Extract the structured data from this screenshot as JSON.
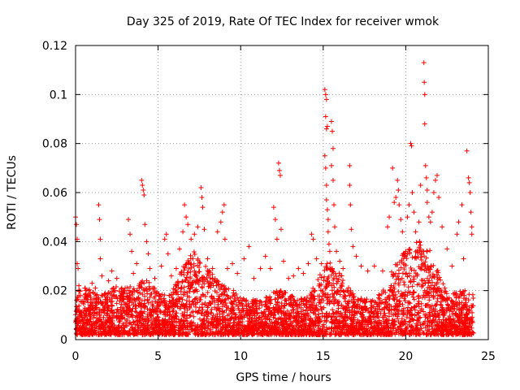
{
  "chart_data": {
    "type": "scatter",
    "title": "Day 325 of 2019, Rate Of TEC Index for receiver wmok",
    "xlabel": "GPS time / hours",
    "ylabel": "ROTI / TECUs",
    "xlim": [
      0,
      25
    ],
    "ylim": [
      0,
      0.12
    ],
    "x_ticks": [
      0,
      5,
      10,
      15,
      20,
      25
    ],
    "x_tick_labels": [
      "0",
      "5",
      "10",
      "15",
      "20",
      "25"
    ],
    "y_ticks": [
      0,
      0.02,
      0.04,
      0.06,
      0.08,
      0.1,
      0.12
    ],
    "y_tick_labels": [
      "0",
      "0.02",
      "0.04",
      "0.06",
      "0.08",
      "0.1",
      "0.12"
    ],
    "grid": true,
    "marker": "+",
    "series": [
      {
        "color": "#ff0000",
        "points": [
          [
            0.0,
            0.05
          ],
          [
            0.05,
            0.047
          ],
          [
            0.1,
            0.041
          ],
          [
            0.1,
            0.031
          ],
          [
            0.15,
            0.029
          ],
          [
            0.2,
            0.022
          ],
          [
            0.3,
            0.018
          ],
          [
            0.5,
            0.012
          ],
          [
            0.8,
            0.02
          ],
          [
            1.0,
            0.023
          ],
          [
            1.2,
            0.021
          ],
          [
            1.4,
            0.055
          ],
          [
            1.45,
            0.049
          ],
          [
            1.5,
            0.041
          ],
          [
            1.5,
            0.033
          ],
          [
            1.6,
            0.026
          ],
          [
            2.0,
            0.024
          ],
          [
            2.2,
            0.028
          ],
          [
            2.5,
            0.025
          ],
          [
            2.8,
            0.021
          ],
          [
            3.2,
            0.049
          ],
          [
            3.3,
            0.043
          ],
          [
            3.4,
            0.036
          ],
          [
            3.5,
            0.027
          ],
          [
            3.7,
            0.031
          ],
          [
            4.0,
            0.065
          ],
          [
            4.05,
            0.063
          ],
          [
            4.1,
            0.061
          ],
          [
            4.15,
            0.059
          ],
          [
            4.2,
            0.047
          ],
          [
            4.3,
            0.04
          ],
          [
            4.4,
            0.035
          ],
          [
            4.5,
            0.029
          ],
          [
            4.8,
            0.025
          ],
          [
            5.2,
            0.03
          ],
          [
            5.4,
            0.041
          ],
          [
            5.5,
            0.043
          ],
          [
            5.6,
            0.035
          ],
          [
            5.8,
            0.026
          ],
          [
            6.1,
            0.029
          ],
          [
            6.3,
            0.037
          ],
          [
            6.5,
            0.044
          ],
          [
            6.6,
            0.055
          ],
          [
            6.7,
            0.05
          ],
          [
            6.8,
            0.047
          ],
          [
            7.0,
            0.041
          ],
          [
            7.2,
            0.043
          ],
          [
            7.4,
            0.046
          ],
          [
            7.6,
            0.062
          ],
          [
            7.65,
            0.058
          ],
          [
            7.7,
            0.054
          ],
          [
            7.8,
            0.045
          ],
          [
            8.0,
            0.033
          ],
          [
            8.3,
            0.029
          ],
          [
            8.6,
            0.044
          ],
          [
            8.8,
            0.048
          ],
          [
            8.9,
            0.052
          ],
          [
            9.0,
            0.055
          ],
          [
            9.05,
            0.041
          ],
          [
            9.2,
            0.029
          ],
          [
            9.5,
            0.031
          ],
          [
            9.8,
            0.027
          ],
          [
            10.2,
            0.033
          ],
          [
            10.5,
            0.038
          ],
          [
            10.8,
            0.025
          ],
          [
            11.2,
            0.029
          ],
          [
            11.5,
            0.034
          ],
          [
            11.8,
            0.029
          ],
          [
            12.0,
            0.054
          ],
          [
            12.1,
            0.049
          ],
          [
            12.2,
            0.041
          ],
          [
            12.3,
            0.072
          ],
          [
            12.35,
            0.069
          ],
          [
            12.4,
            0.067
          ],
          [
            12.45,
            0.045
          ],
          [
            12.6,
            0.032
          ],
          [
            12.9,
            0.025
          ],
          [
            13.2,
            0.026
          ],
          [
            13.5,
            0.029
          ],
          [
            13.8,
            0.027
          ],
          [
            14.1,
            0.031
          ],
          [
            14.3,
            0.043
          ],
          [
            14.4,
            0.041
          ],
          [
            14.6,
            0.033
          ],
          [
            14.9,
            0.031
          ],
          [
            15.1,
            0.102
          ],
          [
            15.15,
            0.1
          ],
          [
            15.2,
            0.098
          ],
          [
            15.15,
            0.091
          ],
          [
            15.2,
            0.086
          ],
          [
            15.25,
            0.087
          ],
          [
            15.1,
            0.075
          ],
          [
            15.15,
            0.07
          ],
          [
            15.2,
            0.063
          ],
          [
            15.2,
            0.057
          ],
          [
            15.25,
            0.053
          ],
          [
            15.3,
            0.049
          ],
          [
            15.3,
            0.044
          ],
          [
            15.35,
            0.039
          ],
          [
            15.4,
            0.036
          ],
          [
            15.5,
            0.089
          ],
          [
            15.55,
            0.085
          ],
          [
            15.6,
            0.078
          ],
          [
            15.5,
            0.071
          ],
          [
            15.6,
            0.065
          ],
          [
            15.65,
            0.055
          ],
          [
            15.7,
            0.046
          ],
          [
            15.8,
            0.036
          ],
          [
            16.0,
            0.032
          ],
          [
            16.2,
            0.029
          ],
          [
            16.6,
            0.071
          ],
          [
            16.6,
            0.063
          ],
          [
            16.65,
            0.055
          ],
          [
            16.7,
            0.045
          ],
          [
            16.8,
            0.038
          ],
          [
            17.0,
            0.034
          ],
          [
            17.3,
            0.03
          ],
          [
            17.7,
            0.028
          ],
          [
            18.1,
            0.03
          ],
          [
            18.6,
            0.028
          ],
          [
            18.9,
            0.046
          ],
          [
            19.0,
            0.05
          ],
          [
            19.2,
            0.07
          ],
          [
            19.3,
            0.056
          ],
          [
            19.4,
            0.058
          ],
          [
            19.5,
            0.065
          ],
          [
            19.55,
            0.061
          ],
          [
            19.6,
            0.055
          ],
          [
            19.7,
            0.049
          ],
          [
            19.8,
            0.044
          ],
          [
            20.0,
            0.036
          ],
          [
            20.1,
            0.05
          ],
          [
            20.2,
            0.055
          ],
          [
            20.3,
            0.08
          ],
          [
            20.35,
            0.079
          ],
          [
            20.4,
            0.06
          ],
          [
            20.5,
            0.052
          ],
          [
            20.6,
            0.044
          ],
          [
            20.8,
            0.048
          ],
          [
            20.9,
            0.063
          ],
          [
            21.1,
            0.113
          ],
          [
            21.12,
            0.105
          ],
          [
            21.15,
            0.1
          ],
          [
            21.15,
            0.088
          ],
          [
            21.2,
            0.071
          ],
          [
            21.25,
            0.066
          ],
          [
            21.3,
            0.061
          ],
          [
            21.3,
            0.056
          ],
          [
            21.4,
            0.05
          ],
          [
            21.5,
            0.048
          ],
          [
            21.6,
            0.052
          ],
          [
            21.7,
            0.06
          ],
          [
            21.8,
            0.065
          ],
          [
            21.9,
            0.067
          ],
          [
            22.0,
            0.058
          ],
          [
            22.2,
            0.046
          ],
          [
            22.5,
            0.037
          ],
          [
            22.8,
            0.03
          ],
          [
            23.1,
            0.043
          ],
          [
            23.2,
            0.048
          ],
          [
            23.4,
            0.055
          ],
          [
            23.5,
            0.033
          ],
          [
            23.7,
            0.077
          ],
          [
            23.8,
            0.066
          ],
          [
            23.85,
            0.064
          ],
          [
            23.9,
            0.06
          ],
          [
            23.95,
            0.052
          ],
          [
            24.0,
            0.046
          ],
          [
            24.0,
            0.043
          ]
        ]
      }
    ]
  }
}
